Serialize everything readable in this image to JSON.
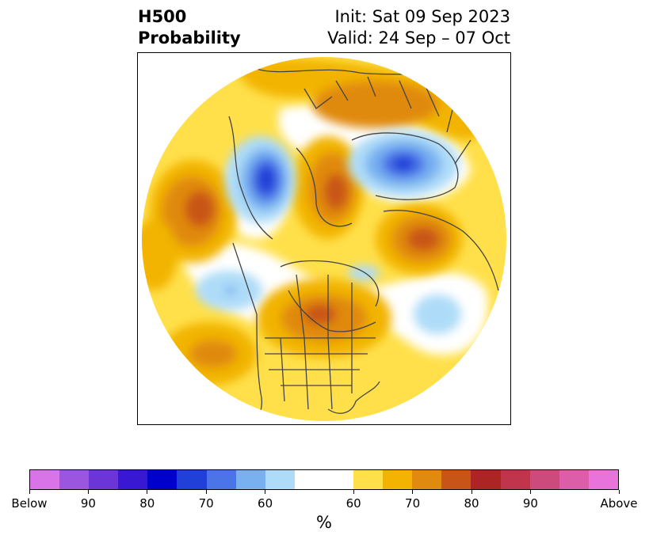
{
  "title": {
    "variable": "H500",
    "product": "Probability",
    "init": "Init: Sat 09 Sep 2023",
    "valid": "Valid: 24 Sep – 07 Oct"
  },
  "map": {
    "projection": "north-polar stereographic",
    "fields": "500 hPa height probability (below / above normal)",
    "icons": [
      "coastlines",
      "country-borders",
      "us-state-borders",
      "canada-province-borders"
    ]
  },
  "colorbar": {
    "units": "%",
    "colors": [
      "#d873e8",
      "#9b56e0",
      "#6b35d8",
      "#3918d4",
      "#0000cc",
      "#2040d8",
      "#4a74e8",
      "#78b0f0",
      "#aedcf8",
      "#ffffff",
      "#ffe04a",
      "#f2b400",
      "#e08a10",
      "#c85418",
      "#ad2424",
      "#c0344c",
      "#cd4a7c",
      "#dc5ea8",
      "#e873da"
    ],
    "tick_labels": [
      "Below",
      "90",
      "80",
      "70",
      "60",
      "60",
      "70",
      "80",
      "90",
      "Above"
    ]
  }
}
